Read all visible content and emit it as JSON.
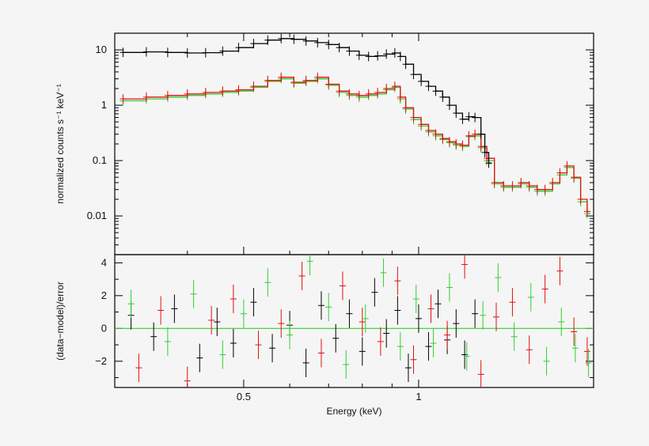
{
  "chart_data": [
    {
      "type": "line",
      "panel": "top",
      "xlabel": "",
      "ylabel": "normalized counts s⁻¹ keV⁻¹",
      "xscale": "log",
      "yscale": "log",
      "xlim": [
        0.3,
        2.0
      ],
      "ylim": [
        0.002,
        20
      ],
      "yticks": [
        10,
        1,
        0.1,
        0.01
      ],
      "yticklabels": [
        "10",
        "1",
        "0.1",
        "0.01"
      ],
      "colors": {
        "black": "#000000",
        "red": "#e01010",
        "green": "#30d030"
      },
      "series": [
        {
          "color": "black",
          "x": [
            0.31,
            0.34,
            0.37,
            0.4,
            0.43,
            0.46,
            0.49,
            0.52,
            0.55,
            0.58,
            0.61,
            0.64,
            0.67,
            0.7,
            0.73,
            0.76,
            0.79,
            0.82,
            0.85,
            0.88,
            0.91,
            0.93,
            0.95,
            0.98,
            1.01,
            1.04,
            1.07,
            1.1,
            1.13,
            1.16,
            1.19,
            1.22,
            1.25,
            1.28,
            1.3,
            1.32
          ],
          "y": [
            9.0,
            9.2,
            9.0,
            8.8,
            8.9,
            9.5,
            11,
            13,
            15,
            16,
            15.5,
            14.5,
            13.5,
            12.5,
            11,
            9.5,
            8.0,
            7.6,
            7.8,
            8.4,
            8.8,
            7.6,
            5.5,
            3.6,
            2.7,
            2.2,
            1.8,
            1.4,
            1.0,
            0.72,
            0.56,
            0.62,
            0.6,
            0.3,
            0.14,
            0.09
          ]
        },
        {
          "color": "red",
          "x": [
            0.31,
            0.34,
            0.37,
            0.4,
            0.43,
            0.46,
            0.49,
            0.52,
            0.55,
            0.58,
            0.61,
            0.64,
            0.67,
            0.7,
            0.73,
            0.76,
            0.79,
            0.82,
            0.85,
            0.88,
            0.91,
            0.93,
            0.95,
            0.98,
            1.01,
            1.04,
            1.07,
            1.1,
            1.13,
            1.16,
            1.19,
            1.22,
            1.25,
            1.28,
            1.31,
            1.35,
            1.4,
            1.45,
            1.5,
            1.55,
            1.6,
            1.65,
            1.7,
            1.75,
            1.8,
            1.85,
            1.9,
            1.95
          ],
          "y": [
            1.3,
            1.4,
            1.5,
            1.6,
            1.7,
            1.8,
            1.9,
            2.2,
            2.8,
            3.2,
            2.6,
            2.8,
            3.2,
            2.4,
            1.8,
            1.6,
            1.5,
            1.6,
            1.7,
            2.0,
            2.2,
            1.4,
            0.9,
            0.6,
            0.45,
            0.35,
            0.3,
            0.25,
            0.22,
            0.2,
            0.19,
            0.28,
            0.3,
            0.18,
            0.11,
            0.04,
            0.035,
            0.035,
            0.04,
            0.035,
            0.03,
            0.03,
            0.04,
            0.06,
            0.08,
            0.05,
            0.02,
            0.012
          ]
        },
        {
          "color": "green",
          "x": [
            0.31,
            0.34,
            0.37,
            0.4,
            0.43,
            0.46,
            0.49,
            0.52,
            0.55,
            0.58,
            0.61,
            0.64,
            0.67,
            0.7,
            0.73,
            0.76,
            0.79,
            0.82,
            0.85,
            0.88,
            0.91,
            0.93,
            0.95,
            0.98,
            1.01,
            1.04,
            1.07,
            1.1,
            1.13,
            1.16,
            1.19,
            1.22,
            1.25,
            1.28,
            1.31,
            1.35,
            1.4,
            1.45,
            1.5,
            1.55,
            1.6,
            1.65,
            1.7,
            1.75,
            1.8,
            1.85,
            1.9,
            1.95
          ],
          "y": [
            1.2,
            1.3,
            1.4,
            1.5,
            1.6,
            1.7,
            1.8,
            2.1,
            2.7,
            3.0,
            2.5,
            2.7,
            3.0,
            2.3,
            1.7,
            1.5,
            1.4,
            1.5,
            1.6,
            1.9,
            2.1,
            1.3,
            0.85,
            0.55,
            0.42,
            0.33,
            0.28,
            0.24,
            0.21,
            0.19,
            0.18,
            0.27,
            0.28,
            0.17,
            0.1,
            0.038,
            0.033,
            0.033,
            0.038,
            0.033,
            0.028,
            0.028,
            0.038,
            0.055,
            0.075,
            0.048,
            0.018,
            0.011
          ]
        }
      ]
    },
    {
      "type": "scatter",
      "panel": "bottom",
      "xlabel": "Energy (keV)",
      "ylabel": "(data−model)/error",
      "xscale": "log",
      "xlim": [
        0.3,
        2.0
      ],
      "ylim": [
        -3.6,
        4.5
      ],
      "xticks": [
        0.5,
        1
      ],
      "xticklabels": [
        "0.5",
        "1"
      ],
      "yticks": [
        4,
        2,
        0,
        -2
      ],
      "yticklabels": [
        "4",
        "2",
        "0",
        "−2"
      ],
      "zero_line_color": "#30d030",
      "points": {
        "black": {
          "x": [
            0.32,
            0.35,
            0.38,
            0.42,
            0.45,
            0.48,
            0.52,
            0.56,
            0.6,
            0.64,
            0.68,
            0.72,
            0.76,
            0.8,
            0.84,
            0.88,
            0.92,
            0.96,
            1.0,
            1.04,
            1.08,
            1.12,
            1.16,
            1.2,
            1.25
          ],
          "y": [
            0.8,
            -0.5,
            1.2,
            -1.8,
            0.4,
            -0.9,
            1.6,
            -1.2,
            0.2,
            -2.1,
            1.4,
            -0.6,
            0.9,
            -1.4,
            2.2,
            -0.3,
            1.1,
            -2.4,
            0.6,
            -1.1,
            1.5,
            -0.7,
            0.3,
            -1.6,
            0.9
          ]
        },
        "red": {
          "x": [
            0.33,
            0.36,
            0.4,
            0.44,
            0.48,
            0.53,
            0.58,
            0.63,
            0.68,
            0.74,
            0.8,
            0.86,
            0.92,
            0.98,
            1.05,
            1.12,
            1.2,
            1.28,
            1.36,
            1.45,
            1.55,
            1.65,
            1.75,
            1.85,
            1.95
          ],
          "y": [
            -2.4,
            1.1,
            -3.2,
            0.5,
            1.8,
            -1.0,
            0.3,
            3.2,
            -1.5,
            2.6,
            0.4,
            -0.8,
            2.9,
            -1.9,
            1.2,
            -0.4,
            3.9,
            -2.8,
            0.7,
            1.6,
            -1.3,
            2.4,
            3.5,
            -0.2,
            -1.4
          ]
        },
        "green": {
          "x": [
            0.32,
            0.37,
            0.41,
            0.46,
            0.5,
            0.55,
            0.6,
            0.65,
            0.7,
            0.75,
            0.81,
            0.87,
            0.93,
            0.99,
            1.06,
            1.13,
            1.21,
            1.29,
            1.37,
            1.46,
            1.56,
            1.66,
            1.76,
            1.86,
            1.96
          ],
          "y": [
            1.5,
            -0.8,
            2.1,
            -1.6,
            0.9,
            2.8,
            -0.4,
            4.1,
            1.3,
            -2.2,
            0.6,
            3.4,
            -1.1,
            1.8,
            -0.9,
            2.5,
            -1.7,
            0.8,
            3.1,
            -0.5,
            1.9,
            -2.0,
            0.4,
            -1.2,
            -2.1
          ]
        }
      }
    }
  ]
}
